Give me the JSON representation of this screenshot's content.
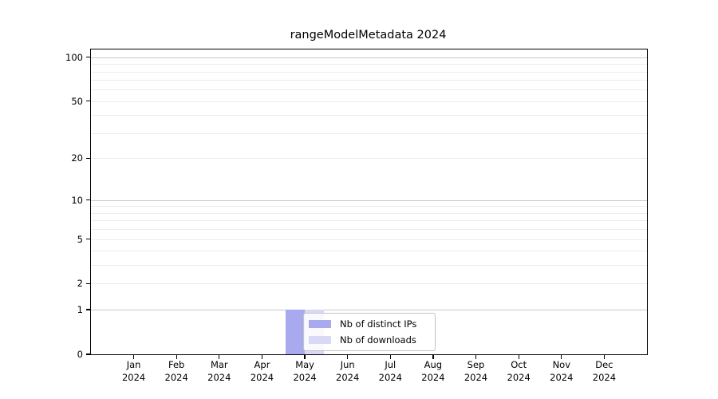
{
  "chart_data": {
    "type": "bar",
    "title": "rangeModelMetadata 2024",
    "x_months": [
      "Jan",
      "Feb",
      "Mar",
      "Apr",
      "May",
      "Jun",
      "Jul",
      "Aug",
      "Sep",
      "Oct",
      "Nov",
      "Dec"
    ],
    "x_year": "2024",
    "categories": [
      "Jan 2024",
      "Feb 2024",
      "Mar 2024",
      "Apr 2024",
      "May 2024",
      "Jun 2024",
      "Jul 2024",
      "Aug 2024",
      "Sep 2024",
      "Oct 2024",
      "Nov 2024",
      "Dec 2024"
    ],
    "series": [
      {
        "name": "Nb of distinct IPs",
        "color": "#a9a9f0",
        "values": [
          0,
          0,
          0,
          0,
          1,
          0,
          0,
          0,
          0,
          0,
          0,
          0
        ]
      },
      {
        "name": "Nb of downloads",
        "color": "#d9d9f5",
        "values": [
          0,
          0,
          0,
          0,
          1,
          0,
          0,
          0,
          0,
          0,
          0,
          0
        ]
      }
    ],
    "y_scale": "symlog",
    "y_ticks": [
      0,
      1,
      2,
      5,
      10,
      20,
      50,
      100
    ],
    "y_major_gridlines": [
      1,
      10,
      100
    ],
    "y_minor_gridlines": [
      2,
      3,
      4,
      5,
      6,
      7,
      8,
      9,
      20,
      30,
      40,
      50,
      60,
      70,
      80,
      90
    ],
    "ylim": [
      0,
      113
    ],
    "grid": "horizontal-only",
    "legend_position": "lower center (inside plot, over May bars)",
    "colors": {
      "background": "#ffffff",
      "axis": "#000000",
      "text": "#000000",
      "grid_major": "#c9c9c9",
      "grid_minor": "#ececec",
      "legend_border": "#c3c3c3",
      "legend_background": "rgba(255,255,255,0.85)"
    }
  }
}
